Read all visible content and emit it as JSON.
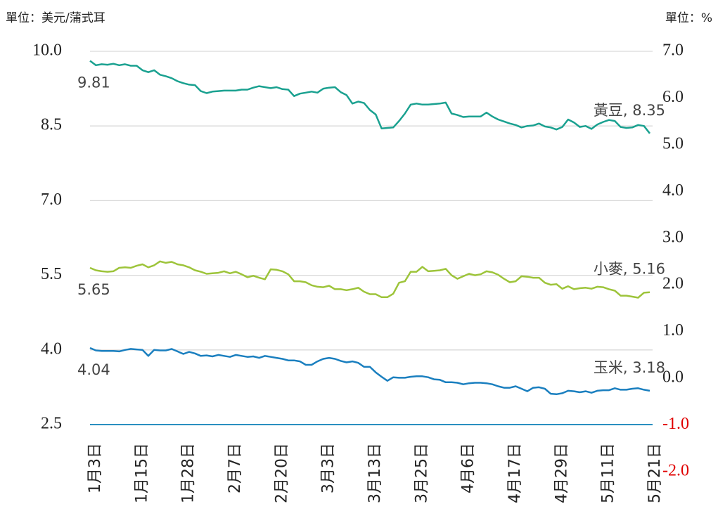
{
  "chart_data": {
    "type": "line",
    "y_label": "單位：美元/蒲式耳",
    "y2_label": "單位：%",
    "categories": [
      "1月3日",
      null,
      null,
      null,
      null,
      null,
      null,
      null,
      "1月15日",
      null,
      null,
      null,
      null,
      null,
      null,
      null,
      "1月28日",
      null,
      null,
      null,
      null,
      null,
      null,
      null,
      "2月7日",
      null,
      null,
      null,
      null,
      null,
      null,
      null,
      "2月20日",
      null,
      null,
      null,
      null,
      null,
      null,
      null,
      "3月3日",
      null,
      null,
      null,
      null,
      null,
      null,
      null,
      "3月13日",
      null,
      null,
      null,
      null,
      null,
      null,
      null,
      "3月25日",
      null,
      null,
      null,
      null,
      null,
      null,
      null,
      "4月6日",
      null,
      null,
      null,
      null,
      null,
      null,
      null,
      "4月17日",
      null,
      null,
      null,
      null,
      null,
      null,
      null,
      "4月29日",
      null,
      null,
      null,
      null,
      null,
      null,
      null,
      "5月11日",
      null,
      null,
      null,
      null,
      null,
      null,
      null,
      "5月21日"
    ],
    "series": [
      {
        "color": "#1aa190",
        "values": [
          9.81,
          9.72,
          9.74,
          9.73,
          9.75,
          9.72,
          9.74,
          9.71,
          9.71,
          9.62,
          9.58,
          9.62,
          9.53,
          9.5,
          9.46,
          9.4,
          9.36,
          9.33,
          9.32,
          9.2,
          9.16,
          9.19,
          9.2,
          9.21,
          9.21,
          9.21,
          9.23,
          9.23,
          9.27,
          9.3,
          9.28,
          9.26,
          9.28,
          9.24,
          9.23,
          9.1,
          9.15,
          9.17,
          9.19,
          9.17,
          9.25,
          9.27,
          9.28,
          9.18,
          9.12,
          8.95,
          8.99,
          8.96,
          8.82,
          8.73,
          8.45,
          8.46,
          8.47,
          8.6,
          8.75,
          8.93,
          8.95,
          8.93,
          8.93,
          8.94,
          8.95,
          8.97,
          8.75,
          8.72,
          8.68,
          8.69,
          8.69,
          8.69,
          8.77,
          8.69,
          8.63,
          8.59,
          8.55,
          8.52,
          8.47,
          8.5,
          8.51,
          8.55,
          8.49,
          8.47,
          8.43,
          8.48,
          8.63,
          8.57,
          8.48,
          8.5,
          8.44,
          8.53,
          8.58,
          8.62,
          8.6,
          8.48,
          8.46,
          8.47,
          8.52,
          8.5,
          8.35
        ]
      },
      {
        "color": "#9dc43a",
        "values": [
          5.65,
          5.6,
          5.58,
          5.57,
          5.58,
          5.65,
          5.66,
          5.65,
          5.69,
          5.72,
          5.66,
          5.7,
          5.78,
          5.75,
          5.77,
          5.72,
          5.7,
          5.66,
          5.6,
          5.57,
          5.53,
          5.54,
          5.55,
          5.58,
          5.54,
          5.57,
          5.52,
          5.46,
          5.49,
          5.45,
          5.42,
          5.62,
          5.61,
          5.58,
          5.52,
          5.38,
          5.38,
          5.36,
          5.3,
          5.27,
          5.26,
          5.29,
          5.22,
          5.22,
          5.2,
          5.22,
          5.25,
          5.17,
          5.12,
          5.12,
          5.06,
          5.06,
          5.13,
          5.35,
          5.38,
          5.57,
          5.57,
          5.67,
          5.58,
          5.59,
          5.6,
          5.63,
          5.5,
          5.43,
          5.48,
          5.53,
          5.5,
          5.52,
          5.58,
          5.56,
          5.51,
          5.43,
          5.36,
          5.38,
          5.48,
          5.47,
          5.45,
          5.45,
          5.35,
          5.31,
          5.32,
          5.23,
          5.28,
          5.22,
          5.24,
          5.25,
          5.23,
          5.27,
          5.26,
          5.22,
          5.19,
          5.09,
          5.09,
          5.07,
          5.05,
          5.15,
          5.16
        ]
      },
      {
        "color": "#1a7fbf",
        "values": [
          4.04,
          3.99,
          3.98,
          3.98,
          3.98,
          3.97,
          4.0,
          4.02,
          4.01,
          4.0,
          3.88,
          4.0,
          3.99,
          3.99,
          4.02,
          3.97,
          3.92,
          3.96,
          3.93,
          3.88,
          3.89,
          3.87,
          3.9,
          3.88,
          3.86,
          3.9,
          3.88,
          3.86,
          3.87,
          3.84,
          3.88,
          3.86,
          3.84,
          3.82,
          3.79,
          3.79,
          3.77,
          3.7,
          3.7,
          3.77,
          3.82,
          3.84,
          3.82,
          3.78,
          3.75,
          3.77,
          3.74,
          3.66,
          3.66,
          3.55,
          3.46,
          3.38,
          3.45,
          3.44,
          3.44,
          3.46,
          3.47,
          3.47,
          3.45,
          3.41,
          3.4,
          3.35,
          3.35,
          3.34,
          3.31,
          3.33,
          3.34,
          3.34,
          3.33,
          3.31,
          3.27,
          3.24,
          3.24,
          3.27,
          3.22,
          3.17,
          3.24,
          3.25,
          3.22,
          3.12,
          3.11,
          3.13,
          3.18,
          3.17,
          3.15,
          3.17,
          3.14,
          3.18,
          3.19,
          3.19,
          3.23,
          3.2,
          3.2,
          3.22,
          3.23,
          3.2,
          3.18
        ]
      }
    ],
    "annotations": [
      "黃豆, 8.35",
      "小麥, 5.16",
      "玉米, 3.18"
    ],
    "ylim": [
      2.5,
      10
    ],
    "yticks": [
      {
        "value": 2.5,
        "label": "2.5"
      },
      {
        "value": 4,
        "label": "4.0"
      },
      {
        "value": 5.5,
        "label": "5.5"
      },
      {
        "value": 7,
        "label": "7.0"
      },
      8.5,
      {
        "value": 10,
        "label": "10.0"
      }
    ],
    "y2lim": [
      -2,
      7
    ],
    "y2ticks": [
      {
        "value": -2,
        "label": "-2.0"
      },
      {
        "value": -1,
        "label": "-1.0"
      },
      {
        "value": 0,
        "label": "0.0"
      },
      {
        "value": 1,
        "label": "1.0"
      },
      {
        "value": 2,
        "label": "2.0"
      },
      {
        "value": 3,
        "label": "3.0"
      },
      {
        "value": 4,
        "label": "4.0"
      },
      {
        "value": 5,
        "label": "5.0"
      },
      {
        "value": 6,
        "label": "6.0"
      },
      {
        "value": 7,
        "label": "7.0"
      }
    ],
    "negative_tick_color": "#e00000",
    "grid": true
  }
}
